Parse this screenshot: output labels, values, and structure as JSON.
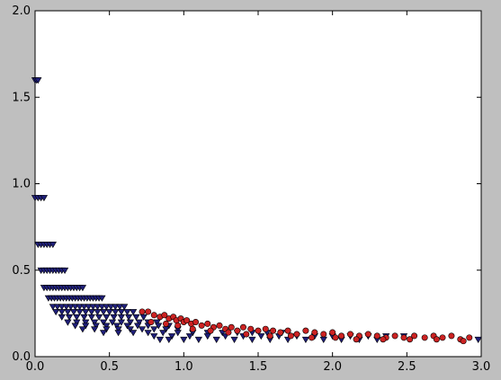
{
  "chart_data": {
    "type": "scatter",
    "title": "",
    "xlabel": "",
    "ylabel": "",
    "xlim": [
      0.0,
      3.0
    ],
    "ylim": [
      0.0,
      2.0
    ],
    "grid": false,
    "legend": "none",
    "x_ticks": [
      "0.0",
      "0.5",
      "1.0",
      "1.5",
      "2.0",
      "2.5",
      "3.0"
    ],
    "y_ticks": [
      "0.0",
      "0.5",
      "1.0",
      "1.5",
      "2.0"
    ],
    "colors": {
      "figure_bg": "#bfbfbf",
      "axes_bg": "#ffffff",
      "triangle_fill": "#1f1f7a",
      "circle_fill": "#cc2222",
      "marker_edge": "#000000"
    },
    "series": [
      {
        "marker": "triangle-down",
        "color": "#1f1f7a",
        "points": [
          [
            0.0,
            1.6
          ],
          [
            0.01,
            1.6
          ],
          [
            0.02,
            1.6
          ],
          [
            0.0,
            0.92
          ],
          [
            0.02,
            0.92
          ],
          [
            0.04,
            0.92
          ],
          [
            0.06,
            0.92
          ],
          [
            0.02,
            0.65
          ],
          [
            0.04,
            0.65
          ],
          [
            0.06,
            0.65
          ],
          [
            0.08,
            0.65
          ],
          [
            0.1,
            0.65
          ],
          [
            0.12,
            0.65
          ],
          [
            0.04,
            0.5
          ],
          [
            0.06,
            0.5
          ],
          [
            0.08,
            0.5
          ],
          [
            0.1,
            0.5
          ],
          [
            0.12,
            0.5
          ],
          [
            0.14,
            0.5
          ],
          [
            0.16,
            0.5
          ],
          [
            0.18,
            0.5
          ],
          [
            0.2,
            0.5
          ],
          [
            0.06,
            0.4
          ],
          [
            0.08,
            0.4
          ],
          [
            0.1,
            0.4
          ],
          [
            0.12,
            0.4
          ],
          [
            0.14,
            0.4
          ],
          [
            0.16,
            0.4
          ],
          [
            0.18,
            0.4
          ],
          [
            0.2,
            0.4
          ],
          [
            0.22,
            0.4
          ],
          [
            0.24,
            0.4
          ],
          [
            0.26,
            0.4
          ],
          [
            0.28,
            0.4
          ],
          [
            0.3,
            0.4
          ],
          [
            0.32,
            0.4
          ],
          [
            0.09,
            0.34
          ],
          [
            0.11,
            0.34
          ],
          [
            0.13,
            0.34
          ],
          [
            0.15,
            0.34
          ],
          [
            0.17,
            0.34
          ],
          [
            0.19,
            0.34
          ],
          [
            0.21,
            0.34
          ],
          [
            0.23,
            0.34
          ],
          [
            0.25,
            0.34
          ],
          [
            0.27,
            0.34
          ],
          [
            0.29,
            0.34
          ],
          [
            0.31,
            0.34
          ],
          [
            0.33,
            0.34
          ],
          [
            0.35,
            0.34
          ],
          [
            0.37,
            0.34
          ],
          [
            0.39,
            0.34
          ],
          [
            0.41,
            0.34
          ],
          [
            0.43,
            0.34
          ],
          [
            0.45,
            0.34
          ],
          [
            0.12,
            0.29
          ],
          [
            0.15,
            0.29
          ],
          [
            0.18,
            0.29
          ],
          [
            0.21,
            0.29
          ],
          [
            0.24,
            0.29
          ],
          [
            0.27,
            0.29
          ],
          [
            0.3,
            0.29
          ],
          [
            0.33,
            0.29
          ],
          [
            0.36,
            0.29
          ],
          [
            0.39,
            0.29
          ],
          [
            0.42,
            0.29
          ],
          [
            0.45,
            0.29
          ],
          [
            0.48,
            0.29
          ],
          [
            0.51,
            0.29
          ],
          [
            0.54,
            0.29
          ],
          [
            0.57,
            0.29
          ],
          [
            0.6,
            0.29
          ],
          [
            0.14,
            0.26
          ],
          [
            0.18,
            0.26
          ],
          [
            0.22,
            0.26
          ],
          [
            0.26,
            0.26
          ],
          [
            0.3,
            0.26
          ],
          [
            0.34,
            0.26
          ],
          [
            0.38,
            0.26
          ],
          [
            0.42,
            0.26
          ],
          [
            0.46,
            0.26
          ],
          [
            0.5,
            0.26
          ],
          [
            0.54,
            0.26
          ],
          [
            0.58,
            0.26
          ],
          [
            0.62,
            0.26
          ],
          [
            0.66,
            0.26
          ],
          [
            0.18,
            0.23
          ],
          [
            0.23,
            0.23
          ],
          [
            0.28,
            0.23
          ],
          [
            0.33,
            0.23
          ],
          [
            0.38,
            0.23
          ],
          [
            0.43,
            0.23
          ],
          [
            0.48,
            0.23
          ],
          [
            0.53,
            0.23
          ],
          [
            0.58,
            0.23
          ],
          [
            0.63,
            0.23
          ],
          [
            0.68,
            0.23
          ],
          [
            0.73,
            0.23
          ],
          [
            0.22,
            0.2
          ],
          [
            0.28,
            0.2
          ],
          [
            0.34,
            0.2
          ],
          [
            0.4,
            0.2
          ],
          [
            0.46,
            0.2
          ],
          [
            0.52,
            0.2
          ],
          [
            0.58,
            0.2
          ],
          [
            0.64,
            0.2
          ],
          [
            0.7,
            0.2
          ],
          [
            0.76,
            0.2
          ],
          [
            0.82,
            0.2
          ],
          [
            0.27,
            0.18
          ],
          [
            0.34,
            0.18
          ],
          [
            0.41,
            0.18
          ],
          [
            0.48,
            0.18
          ],
          [
            0.55,
            0.18
          ],
          [
            0.62,
            0.18
          ],
          [
            0.69,
            0.18
          ],
          [
            0.76,
            0.18
          ],
          [
            0.83,
            0.18
          ],
          [
            0.9,
            0.18
          ],
          [
            0.32,
            0.16
          ],
          [
            0.4,
            0.16
          ],
          [
            0.48,
            0.16
          ],
          [
            0.56,
            0.16
          ],
          [
            0.64,
            0.16
          ],
          [
            0.72,
            0.16
          ],
          [
            0.8,
            0.16
          ],
          [
            0.88,
            0.16
          ],
          [
            0.96,
            0.16
          ],
          [
            0.46,
            0.14
          ],
          [
            0.56,
            0.14
          ],
          [
            0.66,
            0.14
          ],
          [
            0.76,
            0.14
          ],
          [
            0.86,
            0.14
          ],
          [
            0.96,
            0.14
          ],
          [
            1.06,
            0.14
          ],
          [
            1.16,
            0.14
          ],
          [
            1.26,
            0.14
          ],
          [
            1.36,
            0.14
          ],
          [
            1.46,
            0.14
          ],
          [
            1.56,
            0.14
          ],
          [
            1.66,
            0.14
          ],
          [
            0.8,
            0.12
          ],
          [
            0.92,
            0.12
          ],
          [
            1.04,
            0.12
          ],
          [
            1.16,
            0.12
          ],
          [
            1.28,
            0.12
          ],
          [
            1.4,
            0.12
          ],
          [
            1.52,
            0.12
          ],
          [
            1.64,
            0.12
          ],
          [
            1.76,
            0.12
          ],
          [
            1.88,
            0.12
          ],
          [
            2.0,
            0.12
          ],
          [
            2.12,
            0.12
          ],
          [
            2.24,
            0.12
          ],
          [
            2.36,
            0.12
          ],
          [
            2.48,
            0.12
          ],
          [
            0.84,
            0.1
          ],
          [
            0.9,
            0.1
          ],
          [
            1.0,
            0.1
          ],
          [
            1.1,
            0.1
          ],
          [
            1.22,
            0.1
          ],
          [
            1.34,
            0.1
          ],
          [
            1.46,
            0.1
          ],
          [
            1.58,
            0.1
          ],
          [
            1.7,
            0.1
          ],
          [
            1.82,
            0.1
          ],
          [
            1.94,
            0.1
          ],
          [
            2.06,
            0.1
          ],
          [
            2.18,
            0.1
          ],
          [
            2.3,
            0.1
          ],
          [
            2.98,
            0.1
          ]
        ]
      },
      {
        "marker": "circle",
        "color": "#cc2222",
        "points": [
          [
            0.72,
            0.26
          ],
          [
            0.76,
            0.26
          ],
          [
            0.8,
            0.24
          ],
          [
            0.84,
            0.23
          ],
          [
            0.87,
            0.24
          ],
          [
            0.9,
            0.22
          ],
          [
            0.93,
            0.23
          ],
          [
            0.95,
            0.21
          ],
          [
            0.98,
            0.22
          ],
          [
            1.0,
            0.2
          ],
          [
            1.02,
            0.21
          ],
          [
            1.05,
            0.19
          ],
          [
            1.08,
            0.2
          ],
          [
            1.12,
            0.18
          ],
          [
            1.16,
            0.19
          ],
          [
            1.2,
            0.17
          ],
          [
            1.24,
            0.18
          ],
          [
            1.28,
            0.16
          ],
          [
            1.32,
            0.17
          ],
          [
            1.36,
            0.15
          ],
          [
            1.4,
            0.17
          ],
          [
            1.45,
            0.16
          ],
          [
            1.5,
            0.15
          ],
          [
            1.55,
            0.16
          ],
          [
            1.6,
            0.15
          ],
          [
            1.65,
            0.14
          ],
          [
            1.7,
            0.15
          ],
          [
            1.76,
            0.13
          ],
          [
            1.82,
            0.15
          ],
          [
            1.88,
            0.14
          ],
          [
            1.94,
            0.13
          ],
          [
            2.0,
            0.14
          ],
          [
            2.06,
            0.12
          ],
          [
            2.12,
            0.13
          ],
          [
            2.18,
            0.12
          ],
          [
            2.24,
            0.13
          ],
          [
            2.3,
            0.12
          ],
          [
            2.36,
            0.11
          ],
          [
            2.42,
            0.12
          ],
          [
            2.48,
            0.11
          ],
          [
            2.55,
            0.12
          ],
          [
            2.62,
            0.11
          ],
          [
            2.68,
            0.12
          ],
          [
            2.74,
            0.11
          ],
          [
            2.8,
            0.12
          ],
          [
            2.86,
            0.1
          ],
          [
            2.92,
            0.11
          ],
          [
            0.78,
            0.2
          ],
          [
            0.88,
            0.19
          ],
          [
            0.96,
            0.18
          ],
          [
            1.06,
            0.16
          ],
          [
            1.18,
            0.15
          ],
          [
            1.3,
            0.14
          ],
          [
            1.42,
            0.13
          ],
          [
            1.58,
            0.12
          ],
          [
            1.72,
            0.12
          ],
          [
            1.86,
            0.11
          ],
          [
            2.02,
            0.11
          ],
          [
            2.16,
            0.1
          ],
          [
            2.34,
            0.1
          ],
          [
            2.52,
            0.1
          ],
          [
            2.7,
            0.1
          ],
          [
            2.88,
            0.09
          ]
        ]
      }
    ]
  }
}
